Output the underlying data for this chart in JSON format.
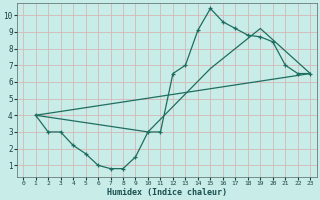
{
  "xlabel": "Humidex (Indice chaleur)",
  "bg_color": "#c8ece8",
  "grid_color": "#d4b8b8",
  "line_color": "#1e6e60",
  "xlim": [
    -0.5,
    23.5
  ],
  "ylim": [
    0.3,
    10.7
  ],
  "xticks": [
    0,
    1,
    2,
    3,
    4,
    5,
    6,
    7,
    8,
    9,
    10,
    11,
    12,
    13,
    14,
    15,
    16,
    17,
    18,
    19,
    20,
    21,
    22,
    23
  ],
  "yticks": [
    1,
    2,
    3,
    4,
    5,
    6,
    7,
    8,
    9,
    10
  ],
  "curve1_x": [
    1,
    2,
    3,
    4,
    5,
    6,
    7,
    8,
    9,
    10,
    11,
    12,
    13,
    14,
    15,
    16,
    17,
    18,
    19,
    20,
    21,
    22,
    23
  ],
  "curve1_y": [
    4.0,
    3.0,
    3.0,
    2.2,
    1.7,
    1.0,
    0.8,
    0.8,
    1.5,
    3.0,
    3.0,
    6.5,
    7.0,
    9.1,
    10.4,
    9.6,
    9.2,
    8.8,
    8.7,
    8.4,
    7.0,
    6.5,
    6.5
  ],
  "curve2_x": [
    1,
    10,
    15,
    19,
    23
  ],
  "curve2_y": [
    4.0,
    3.0,
    6.8,
    9.2,
    6.5
  ],
  "curve3_x": [
    1,
    23
  ],
  "curve3_y": [
    4.0,
    6.5
  ]
}
